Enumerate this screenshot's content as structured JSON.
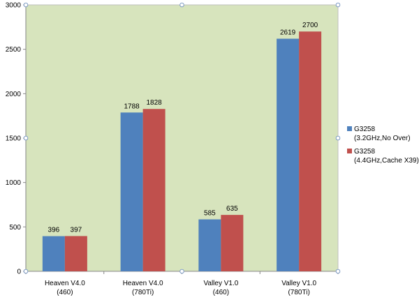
{
  "chart_data": {
    "type": "bar",
    "categories": [
      [
        "Heaven V4.0",
        "(460)"
      ],
      [
        "Heaven V4.0",
        "(780Ti)"
      ],
      [
        "Valley V1.0",
        "(460)"
      ],
      [
        "Valley V1.0",
        "(780Ti)"
      ]
    ],
    "series": [
      {
        "name": [
          "G3258",
          "(3.2GHz,No Over)"
        ],
        "color": "#4f81bd",
        "values": [
          396,
          1788,
          585,
          2619
        ]
      },
      {
        "name": [
          "G3258",
          "(4.4GHz,Cache X39)"
        ],
        "color": "#c0504d",
        "values": [
          397,
          1828,
          635,
          2700
        ]
      }
    ],
    "title": "",
    "xlabel": "",
    "ylabel": "",
    "ylim": [
      0,
      3000
    ],
    "yticks": [
      0,
      500,
      1000,
      1500,
      2000,
      2500,
      3000
    ],
    "grid": false,
    "legend": "right",
    "plot_background": "#d7e4bd",
    "plot_border": "#bfbfbf"
  }
}
